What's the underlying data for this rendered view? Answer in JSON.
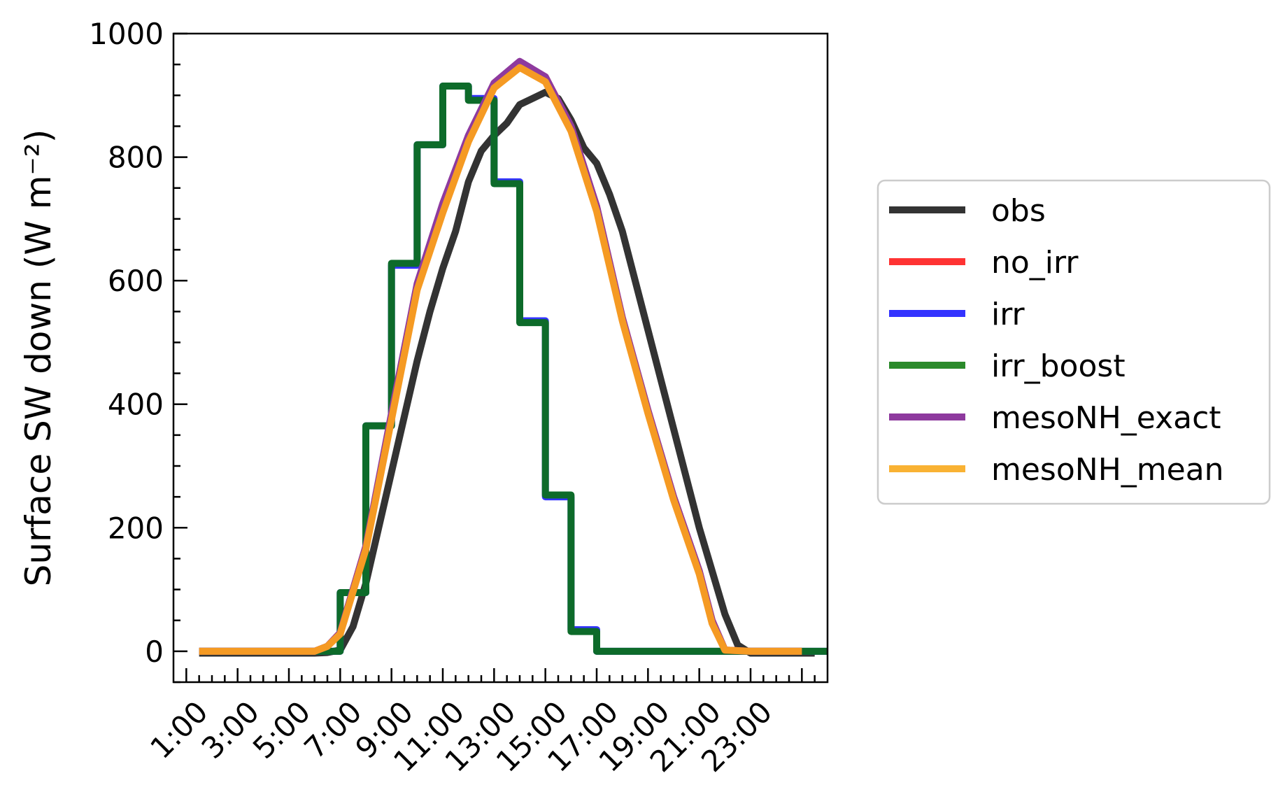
{
  "chart_data": {
    "type": "line",
    "ylabel": "Surface SW down (W m⁻²)",
    "xlabel": "",
    "ylim": [
      -50,
      1000
    ],
    "xlim": [
      0.5,
      26
    ],
    "yticks": [
      0,
      200,
      400,
      600,
      800,
      1000
    ],
    "xticks": [
      1,
      3,
      5,
      7,
      9,
      11,
      13,
      15,
      17,
      19,
      21,
      23
    ],
    "xtick_labels": [
      "1:00",
      "3:00",
      "5:00",
      "7:00",
      "9:00",
      "11:00",
      "13:00",
      "15:00",
      "17:00",
      "19:00",
      "21:00",
      "23:00"
    ],
    "grid": false,
    "legend_position": "right-outside",
    "series": [
      {
        "name": "obs",
        "color": "#333333",
        "step": false,
        "x": [
          1.5,
          2,
          2.5,
          3,
          3.5,
          4,
          4.5,
          5,
          5.5,
          6,
          6.5,
          7,
          7.5,
          8,
          8.5,
          9,
          9.5,
          10,
          10.5,
          11,
          11.5,
          12,
          12.5,
          13,
          13.5,
          14,
          14.5,
          15,
          15.5,
          16,
          16.5,
          17,
          17.5,
          18,
          18.5,
          19,
          19.5,
          20,
          20.5,
          21,
          21.5,
          22,
          22.5,
          23,
          23.5,
          24,
          24.5,
          25,
          25.5
        ],
        "y": [
          -3,
          -3,
          -3,
          -3,
          -3,
          -3,
          -3,
          -3,
          -3,
          -3,
          -2,
          2,
          40,
          110,
          200,
          290,
          380,
          470,
          550,
          620,
          680,
          760,
          810,
          835,
          855,
          885,
          895,
          905,
          895,
          860,
          815,
          790,
          740,
          680,
          600,
          520,
          440,
          360,
          280,
          200,
          130,
          60,
          10,
          -3,
          -3,
          -3,
          -3,
          -3,
          -3
        ]
      },
      {
        "name": "no_irr",
        "color": "#ff3333",
        "step": false,
        "x": [
          1.5,
          6,
          6.5,
          7,
          8,
          9,
          10,
          11,
          12,
          13,
          14,
          15,
          16,
          17,
          18,
          19,
          20,
          21,
          21.5,
          22,
          23,
          24,
          25
        ],
        "y": [
          0,
          0,
          8,
          30,
          170,
          380,
          590,
          720,
          830,
          915,
          950,
          930,
          850,
          720,
          540,
          390,
          250,
          130,
          50,
          2,
          0,
          0,
          0
        ]
      },
      {
        "name": "irr",
        "color": "#3333ff",
        "step": true,
        "x": [
          1.5,
          6,
          7,
          8,
          9,
          10,
          11,
          12,
          13,
          14,
          15,
          16,
          17,
          18,
          19,
          20,
          21,
          22,
          23,
          24,
          25,
          26
        ],
        "y": [
          0,
          0,
          95,
          365,
          625,
          820,
          915,
          895,
          760,
          535,
          250,
          35,
          0,
          0,
          0,
          0,
          0,
          0,
          0,
          0,
          0,
          0
        ]
      },
      {
        "name": "irr_boost",
        "color": "#0d6b2a",
        "step": true,
        "x": [
          1.5,
          6,
          7,
          8,
          9,
          10,
          11,
          12,
          13,
          14,
          15,
          16,
          17,
          18,
          19,
          20,
          21,
          22,
          23,
          24,
          25,
          26
        ],
        "y": [
          0,
          0,
          95,
          365,
          628,
          820,
          915,
          892,
          757,
          532,
          253,
          32,
          0,
          0,
          0,
          0,
          0,
          0,
          0,
          0,
          0,
          0
        ]
      },
      {
        "name": "mesoNH_exact",
        "color": "#8e3a9e",
        "step": false,
        "x": [
          1.5,
          6,
          6.5,
          7,
          8,
          9,
          10,
          11,
          12,
          13,
          14,
          15,
          16,
          17,
          18,
          19,
          20,
          21,
          21.5,
          22,
          23,
          24,
          25
        ],
        "y": [
          0,
          0,
          8,
          30,
          170,
          385,
          595,
          725,
          835,
          920,
          955,
          930,
          850,
          720,
          540,
          390,
          250,
          130,
          50,
          2,
          0,
          0,
          0
        ]
      },
      {
        "name": "mesoNH_mean",
        "color": "#f59a23",
        "step": false,
        "x": [
          1.5,
          6,
          6.5,
          7,
          8,
          9,
          10,
          11,
          12,
          13,
          14,
          15,
          16,
          17,
          18,
          19,
          20,
          21,
          21.5,
          22,
          23,
          24,
          25
        ],
        "y": [
          0,
          0,
          8,
          28,
          165,
          375,
          585,
          710,
          825,
          912,
          945,
          922,
          842,
          712,
          535,
          385,
          245,
          125,
          45,
          2,
          0,
          0,
          0
        ]
      }
    ],
    "legend": [
      {
        "name": "obs",
        "color": "#333333"
      },
      {
        "name": "no_irr",
        "color": "#ff3333"
      },
      {
        "name": "irr",
        "color": "#3333ff"
      },
      {
        "name": "irr_boost",
        "color": "#2a8a2a"
      },
      {
        "name": "mesoNH_exact",
        "color": "#8e3a9e"
      },
      {
        "name": "mesoNH_mean",
        "color": "#f9b233"
      }
    ]
  }
}
